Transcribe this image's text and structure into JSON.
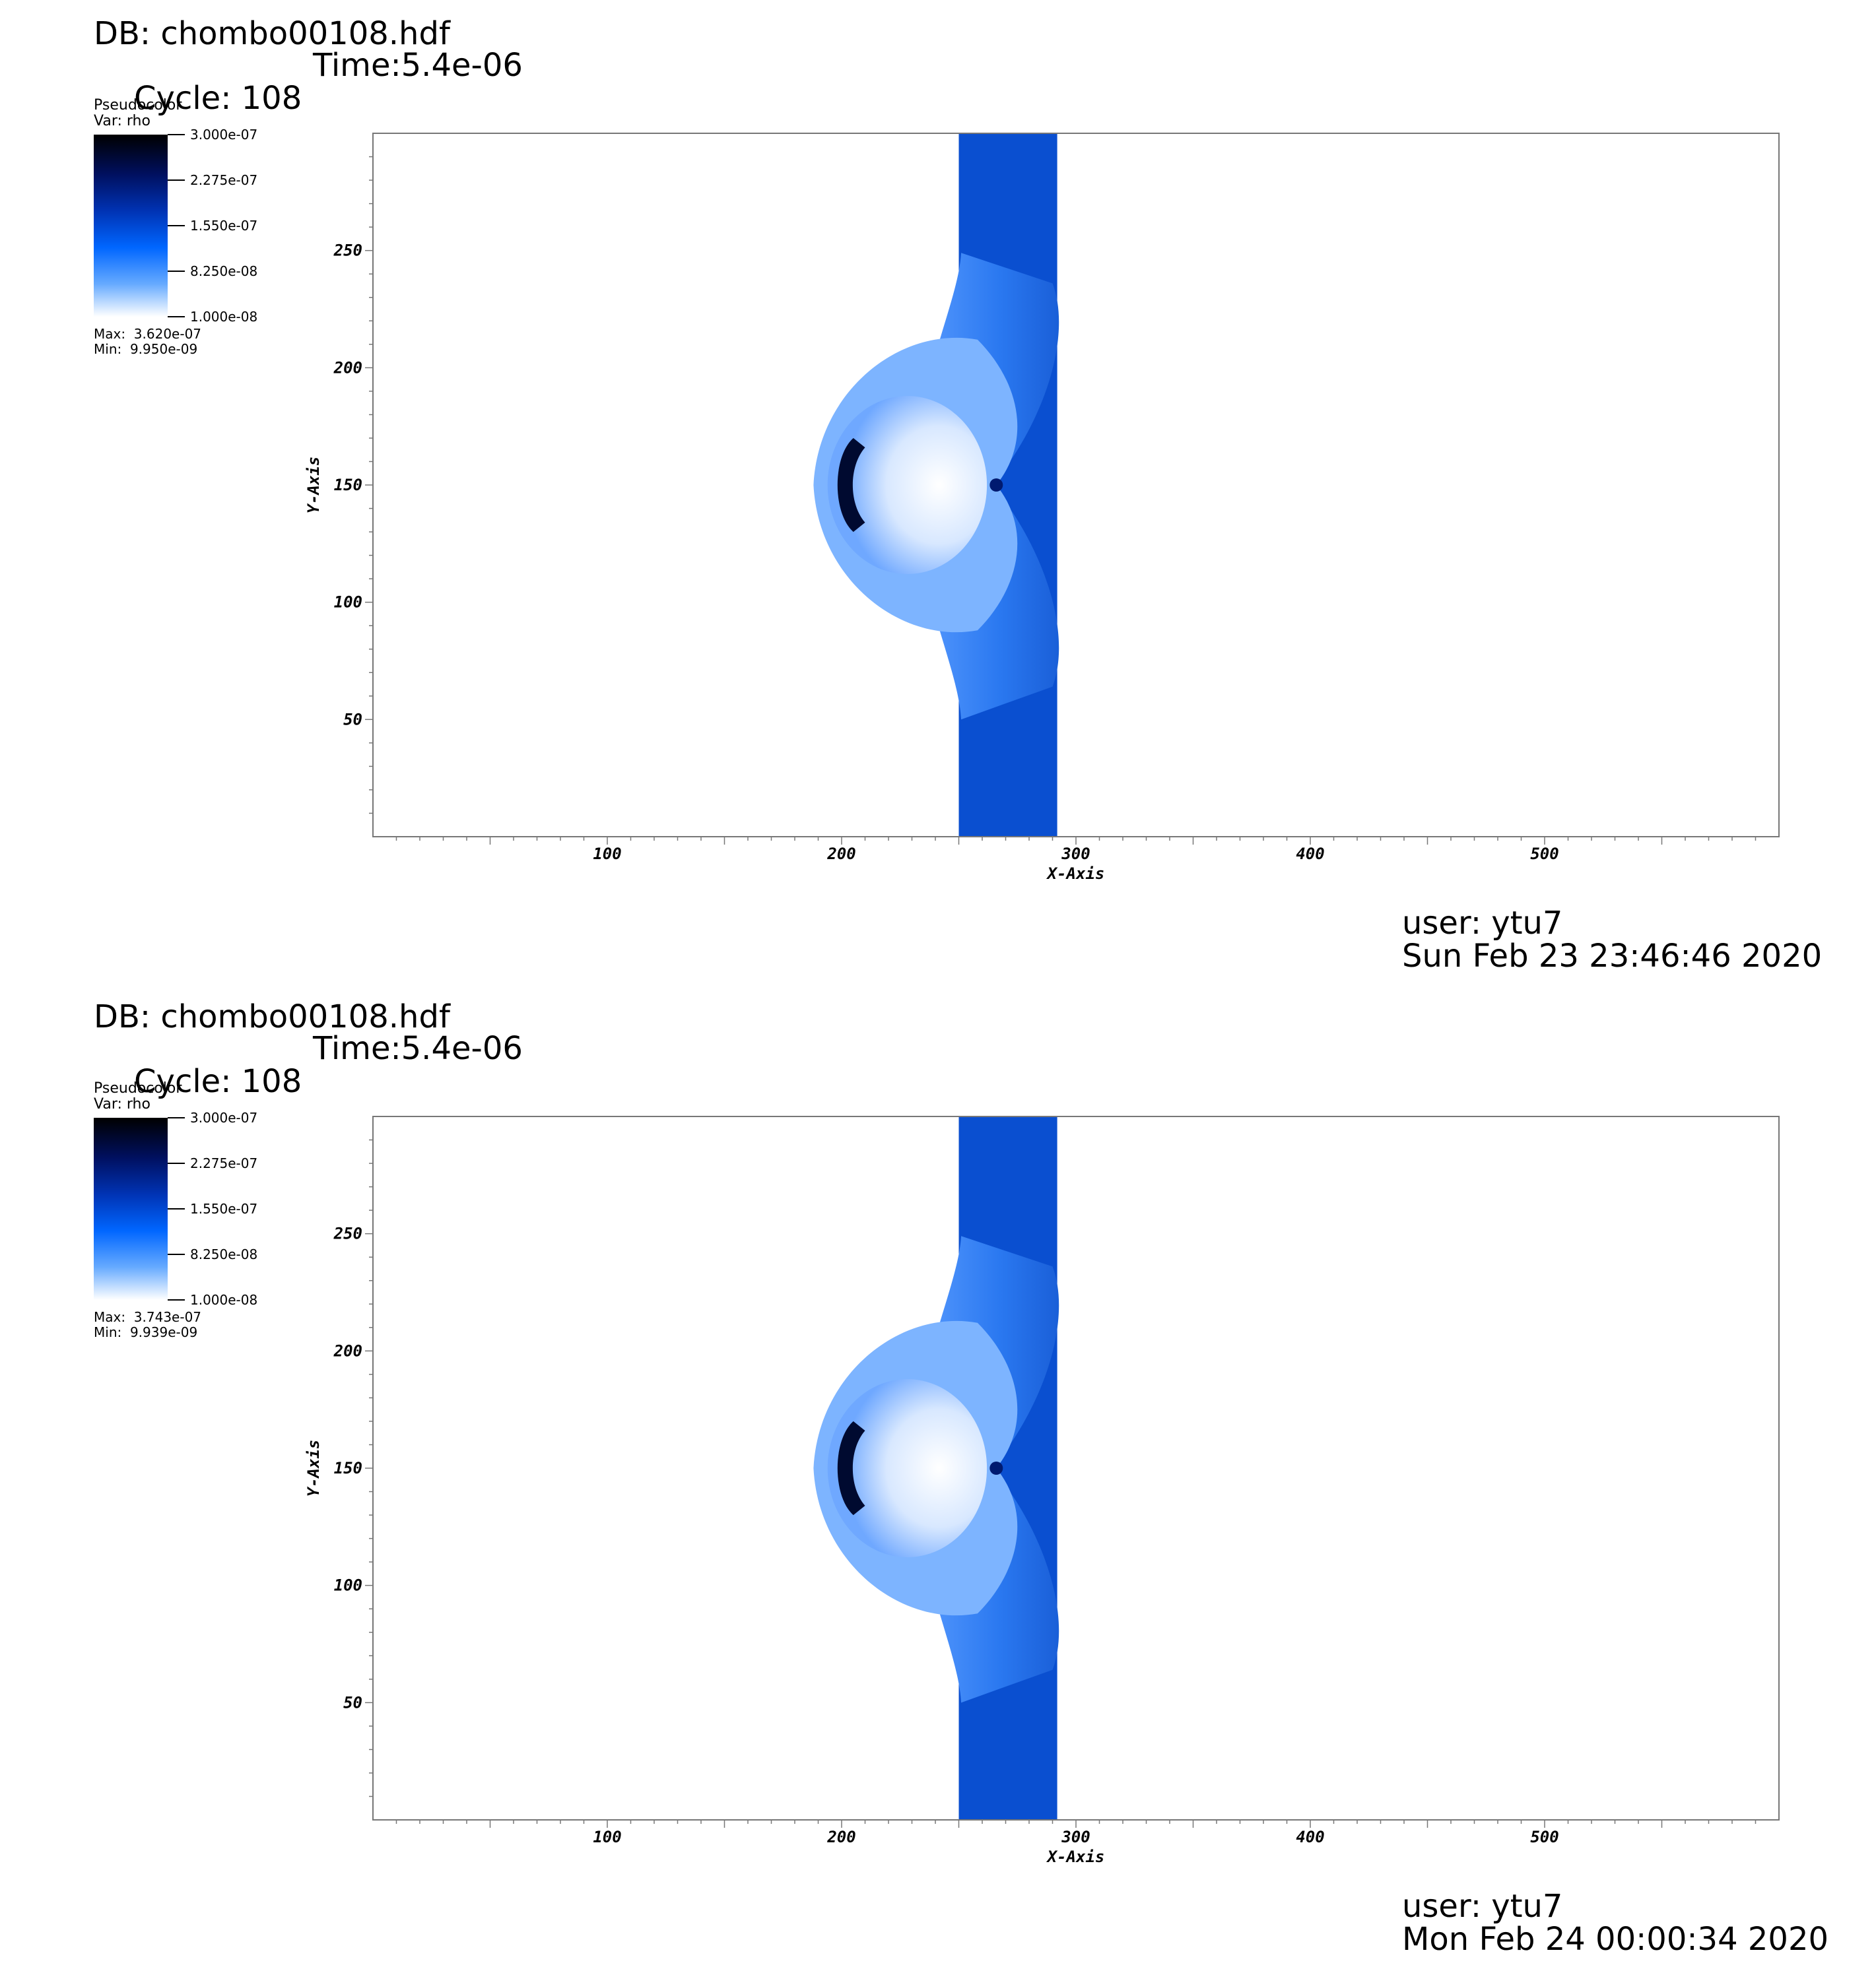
{
  "panels": [
    {
      "db_line": "DB: chombo00108.hdf",
      "cycle_line": "Cycle: 108",
      "time_line": "Time:5.4e-06",
      "legend": {
        "title": "Pseudocolor",
        "var": "Var: rho",
        "ticks": [
          "3.000e-07",
          "2.275e-07",
          "1.550e-07",
          "8.250e-08",
          "1.000e-08"
        ],
        "max": "Max:  3.620e-07",
        "min": "Min:  9.950e-09"
      },
      "user": "user: ytu7",
      "date": "Sun Feb 23 23:46:46 2020"
    },
    {
      "db_line": "DB: chombo00108.hdf",
      "cycle_line": "Cycle: 108",
      "time_line": "Time:5.4e-06",
      "legend": {
        "title": "Pseudocolor",
        "var": "Var: rho",
        "ticks": [
          "3.000e-07",
          "2.275e-07",
          "1.550e-07",
          "8.250e-08",
          "1.000e-08"
        ],
        "max": "Max:  3.743e-07",
        "min": "Min:  9.939e-09"
      },
      "user": "user: ytu7",
      "date": "Mon Feb 24 00:00:34 2020"
    }
  ],
  "chart_data": [
    {
      "type": "heatmap",
      "variable": "rho",
      "xlabel": "X-Axis",
      "ylabel": "Y-Axis",
      "xlim": [
        0,
        600
      ],
      "ylim": [
        0,
        300
      ],
      "xticks": [
        "100",
        "200",
        "300",
        "400",
        "500"
      ],
      "yticks": [
        "50",
        "100",
        "150",
        "200",
        "250"
      ],
      "colorbar_range": [
        1e-08,
        3e-07
      ],
      "max": 3.62e-07,
      "min": 9.95e-09,
      "colormap": [
        "#ffffff",
        "#66aaff",
        "#0066ff",
        "#0033b4",
        "#001060",
        "#000000"
      ]
    },
    {
      "type": "heatmap",
      "variable": "rho",
      "xlabel": "X-Axis",
      "ylabel": "Y-Axis",
      "xlim": [
        0,
        600
      ],
      "ylim": [
        0,
        300
      ],
      "xticks": [
        "100",
        "200",
        "300",
        "400",
        "500"
      ],
      "yticks": [
        "50",
        "100",
        "150",
        "200",
        "250"
      ],
      "colorbar_range": [
        1e-08,
        3e-07
      ],
      "max": 3.743e-07,
      "min": 9.939e-09,
      "colormap": [
        "#ffffff",
        "#66aaff",
        "#0066ff",
        "#0033b4",
        "#001060",
        "#000000"
      ]
    }
  ]
}
